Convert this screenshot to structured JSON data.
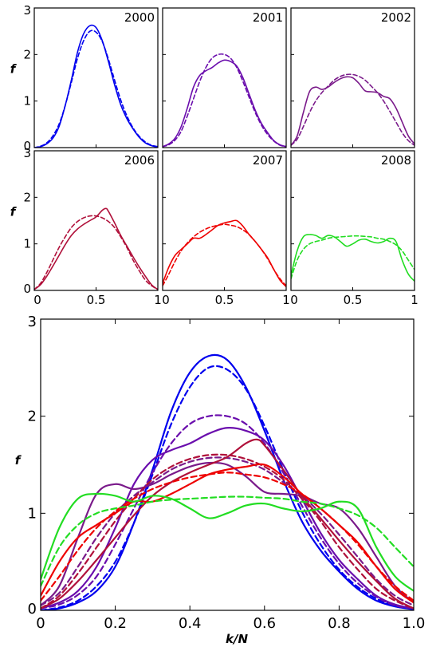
{
  "chart_data": [
    {
      "type": "line",
      "title": "2000",
      "xlim": [
        0,
        1
      ],
      "ylim": [
        0,
        3
      ],
      "series": [
        {
          "style": "solid",
          "color": "#0000ee",
          "x": [
            0,
            0.05,
            0.1,
            0.15,
            0.2,
            0.25,
            0.3,
            0.35,
            0.4,
            0.45,
            0.5,
            0.55,
            0.6,
            0.65,
            0.7,
            0.75,
            0.8,
            0.85,
            0.9,
            0.95,
            1.0
          ],
          "y": [
            0.0,
            0.02,
            0.08,
            0.2,
            0.45,
            0.9,
            1.45,
            2.05,
            2.45,
            2.62,
            2.58,
            2.3,
            1.85,
            1.35,
            0.92,
            0.62,
            0.4,
            0.22,
            0.1,
            0.04,
            0.01
          ]
        },
        {
          "style": "dashed",
          "color": "#0000ee",
          "x": [
            0,
            0.05,
            0.1,
            0.15,
            0.2,
            0.25,
            0.3,
            0.35,
            0.4,
            0.45,
            0.5,
            0.55,
            0.6,
            0.65,
            0.7,
            0.75,
            0.8,
            0.85,
            0.9,
            0.95,
            1.0
          ],
          "y": [
            0.0,
            0.03,
            0.1,
            0.25,
            0.5,
            0.9,
            1.4,
            1.92,
            2.3,
            2.5,
            2.48,
            2.28,
            1.9,
            1.45,
            1.02,
            0.68,
            0.42,
            0.24,
            0.12,
            0.05,
            0.02
          ]
        }
      ]
    },
    {
      "type": "line",
      "title": "2001",
      "xlim": [
        0,
        1
      ],
      "ylim": [
        0,
        3
      ],
      "series": [
        {
          "style": "solid",
          "color": "#6a0dad",
          "x": [
            0,
            0.05,
            0.1,
            0.15,
            0.2,
            0.25,
            0.3,
            0.35,
            0.4,
            0.45,
            0.5,
            0.55,
            0.6,
            0.65,
            0.7,
            0.75,
            0.8,
            0.85,
            0.9,
            0.95,
            1.0
          ],
          "y": [
            0.02,
            0.08,
            0.2,
            0.45,
            0.85,
            1.3,
            1.55,
            1.65,
            1.72,
            1.82,
            1.88,
            1.85,
            1.75,
            1.5,
            1.15,
            0.8,
            0.52,
            0.32,
            0.15,
            0.06,
            0.02
          ]
        },
        {
          "style": "dashed",
          "color": "#6a0dad",
          "x": [
            0,
            0.05,
            0.1,
            0.15,
            0.2,
            0.25,
            0.3,
            0.35,
            0.4,
            0.45,
            0.5,
            0.55,
            0.6,
            0.65,
            0.7,
            0.75,
            0.8,
            0.85,
            0.9,
            0.95,
            1.0
          ],
          "y": [
            0.02,
            0.06,
            0.16,
            0.35,
            0.68,
            1.05,
            1.42,
            1.72,
            1.92,
            2.0,
            2.0,
            1.92,
            1.72,
            1.42,
            1.08,
            0.75,
            0.48,
            0.28,
            0.14,
            0.05,
            0.02
          ]
        }
      ]
    },
    {
      "type": "line",
      "title": "2002",
      "xlim": [
        0,
        1
      ],
      "ylim": [
        0,
        3
      ],
      "series": [
        {
          "style": "solid",
          "color": "#7a1a8a",
          "x": [
            0,
            0.05,
            0.1,
            0.15,
            0.2,
            0.25,
            0.3,
            0.35,
            0.4,
            0.45,
            0.5,
            0.55,
            0.6,
            0.65,
            0.7,
            0.75,
            0.8,
            0.85,
            0.9,
            0.95,
            1.0
          ],
          "y": [
            0.05,
            0.25,
            0.75,
            1.2,
            1.3,
            1.25,
            1.3,
            1.4,
            1.48,
            1.52,
            1.5,
            1.38,
            1.22,
            1.2,
            1.18,
            1.1,
            1.05,
            0.85,
            0.55,
            0.25,
            0.08
          ]
        },
        {
          "style": "dashed",
          "color": "#7a1a8a",
          "x": [
            0,
            0.05,
            0.1,
            0.15,
            0.2,
            0.25,
            0.3,
            0.35,
            0.4,
            0.45,
            0.5,
            0.55,
            0.6,
            0.65,
            0.7,
            0.75,
            0.8,
            0.85,
            0.9,
            0.95,
            1.0
          ],
          "y": [
            0.05,
            0.18,
            0.45,
            0.75,
            1.0,
            1.18,
            1.32,
            1.45,
            1.53,
            1.57,
            1.57,
            1.53,
            1.45,
            1.32,
            1.18,
            1.0,
            0.78,
            0.55,
            0.32,
            0.15,
            0.05
          ]
        }
      ]
    },
    {
      "type": "line",
      "title": "2006",
      "xlim": [
        0,
        1
      ],
      "ylim": [
        0,
        3
      ],
      "series": [
        {
          "style": "solid",
          "color": "#b0103a",
          "x": [
            0,
            0.05,
            0.1,
            0.15,
            0.2,
            0.25,
            0.3,
            0.35,
            0.4,
            0.45,
            0.5,
            0.55,
            0.58,
            0.6,
            0.65,
            0.7,
            0.75,
            0.8,
            0.85,
            0.9,
            0.95,
            1.0
          ],
          "y": [
            0.02,
            0.12,
            0.3,
            0.52,
            0.75,
            0.98,
            1.18,
            1.32,
            1.42,
            1.5,
            1.58,
            1.72,
            1.76,
            1.7,
            1.45,
            1.18,
            0.95,
            0.72,
            0.5,
            0.3,
            0.12,
            0.02
          ]
        },
        {
          "style": "dashed",
          "color": "#b0103a",
          "x": [
            0,
            0.05,
            0.1,
            0.15,
            0.2,
            0.25,
            0.3,
            0.35,
            0.4,
            0.45,
            0.5,
            0.55,
            0.6,
            0.65,
            0.7,
            0.75,
            0.8,
            0.85,
            0.9,
            0.95,
            1.0
          ],
          "y": [
            0.02,
            0.15,
            0.38,
            0.65,
            0.92,
            1.15,
            1.35,
            1.48,
            1.56,
            1.6,
            1.6,
            1.56,
            1.48,
            1.35,
            1.15,
            0.92,
            0.65,
            0.42,
            0.22,
            0.1,
            0.02
          ]
        }
      ]
    },
    {
      "type": "line",
      "title": "2007",
      "xlim": [
        0,
        1
      ],
      "ylim": [
        0,
        3
      ],
      "series": [
        {
          "style": "solid",
          "color": "#ee0000",
          "x": [
            0,
            0.05,
            0.1,
            0.15,
            0.2,
            0.25,
            0.3,
            0.35,
            0.4,
            0.45,
            0.5,
            0.55,
            0.6,
            0.65,
            0.7,
            0.75,
            0.8,
            0.85,
            0.9,
            0.95,
            1.0
          ],
          "y": [
            0.15,
            0.5,
            0.75,
            0.88,
            1.0,
            1.12,
            1.12,
            1.2,
            1.3,
            1.4,
            1.45,
            1.48,
            1.5,
            1.38,
            1.2,
            1.05,
            0.88,
            0.7,
            0.45,
            0.22,
            0.08
          ]
        },
        {
          "style": "dashed",
          "color": "#ee0000",
          "x": [
            0,
            0.05,
            0.1,
            0.15,
            0.2,
            0.25,
            0.3,
            0.35,
            0.4,
            0.45,
            0.5,
            0.55,
            0.6,
            0.65,
            0.7,
            0.75,
            0.8,
            0.85,
            0.9,
            0.95,
            1.0
          ],
          "y": [
            0.1,
            0.35,
            0.62,
            0.85,
            1.02,
            1.15,
            1.25,
            1.32,
            1.37,
            1.4,
            1.42,
            1.4,
            1.37,
            1.3,
            1.2,
            1.05,
            0.88,
            0.68,
            0.45,
            0.25,
            0.1
          ]
        }
      ]
    },
    {
      "type": "line",
      "title": "2008",
      "xlim": [
        0,
        1
      ],
      "ylim": [
        0,
        3
      ],
      "series": [
        {
          "style": "solid",
          "color": "#22dd22",
          "x": [
            0,
            0.05,
            0.1,
            0.15,
            0.2,
            0.25,
            0.3,
            0.35,
            0.4,
            0.45,
            0.5,
            0.55,
            0.6,
            0.65,
            0.7,
            0.75,
            0.8,
            0.85,
            0.9,
            0.95,
            1.0
          ],
          "y": [
            0.32,
            0.85,
            1.15,
            1.2,
            1.18,
            1.12,
            1.18,
            1.15,
            1.05,
            0.95,
            1.0,
            1.08,
            1.1,
            1.05,
            1.02,
            1.05,
            1.12,
            1.05,
            0.65,
            0.35,
            0.2
          ]
        },
        {
          "style": "dashed",
          "color": "#22dd22",
          "x": [
            0,
            0.05,
            0.1,
            0.15,
            0.2,
            0.25,
            0.3,
            0.35,
            0.4,
            0.45,
            0.5,
            0.55,
            0.6,
            0.65,
            0.7,
            0.75,
            0.8,
            0.85,
            0.9,
            0.95,
            1.0
          ],
          "y": [
            0.25,
            0.65,
            0.88,
            1.0,
            1.05,
            1.08,
            1.12,
            1.14,
            1.15,
            1.16,
            1.17,
            1.17,
            1.16,
            1.15,
            1.12,
            1.1,
            1.05,
            0.98,
            0.85,
            0.65,
            0.45
          ]
        }
      ]
    },
    {
      "type": "line",
      "title": "",
      "xlabel": "k/N",
      "ylabel": "f",
      "xlim": [
        0,
        1
      ],
      "ylim": [
        0,
        3
      ],
      "xticks": [
        "0",
        "0.2",
        "0.4",
        "0.6",
        "0.8",
        "1.0"
      ],
      "yticks": [
        "0",
        "1",
        "2",
        "3"
      ],
      "note": "Overlay of all six years' curves (solid and dashed)."
    }
  ],
  "labels": {
    "f": "f",
    "xlabel": "k/N",
    "small_xticks_left": [
      "0",
      "0.5",
      "1"
    ],
    "small_xticks_other": [
      "0",
      "0.5",
      "1"
    ],
    "small_yticks": [
      "0",
      "1",
      "2",
      "3"
    ],
    "big_xticks": [
      "0",
      "0.2",
      "0.4",
      "0.6",
      "0.8",
      "1.0"
    ],
    "big_yticks": [
      "0",
      "1",
      "2",
      "3"
    ]
  }
}
